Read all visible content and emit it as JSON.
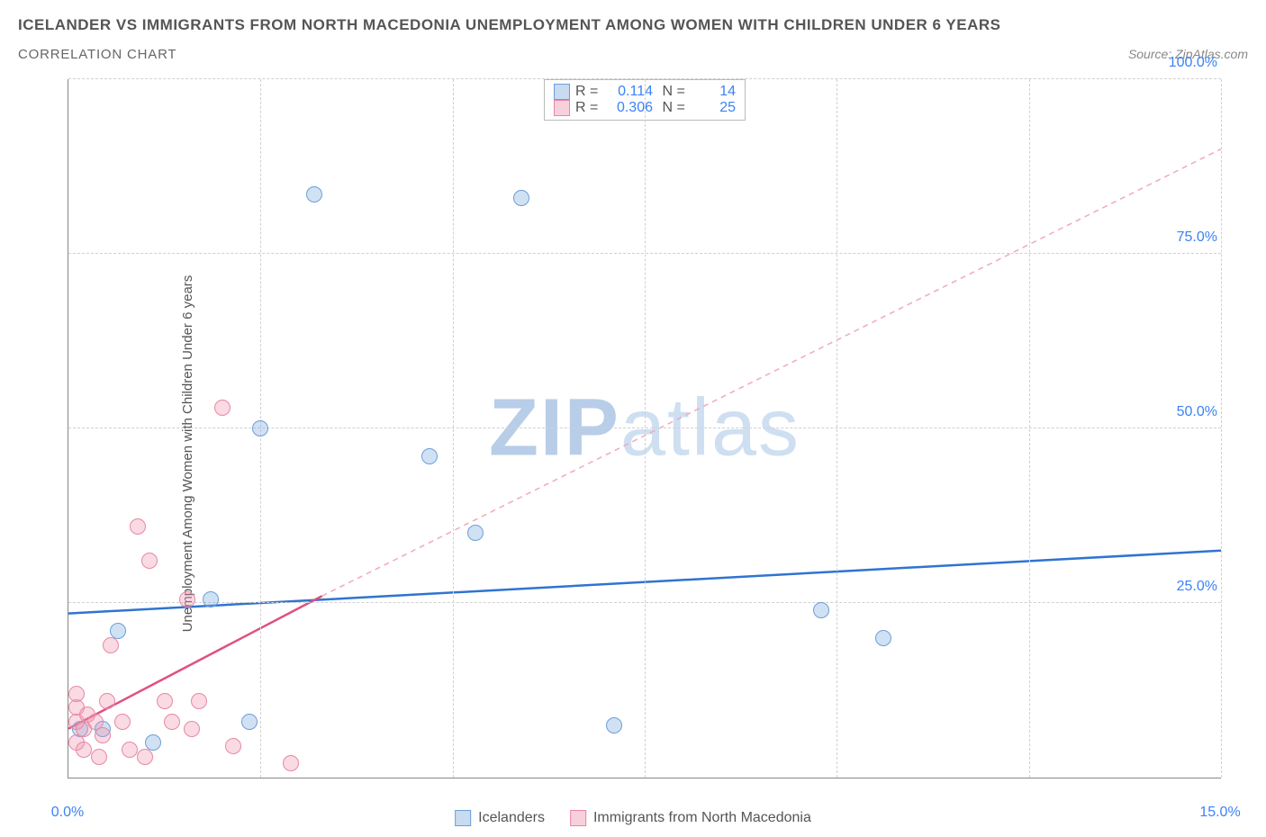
{
  "title": "ICELANDER VS IMMIGRANTS FROM NORTH MACEDONIA UNEMPLOYMENT AMONG WOMEN WITH CHILDREN UNDER 6 YEARS",
  "subtitle": "CORRELATION CHART",
  "source": "Source: ZipAtlas.com",
  "ylabel": "Unemployment Among Women with Children Under 6 years",
  "watermark_a": "ZIP",
  "watermark_b": "atlas",
  "chart": {
    "type": "scatter",
    "xlim": [
      0,
      15
    ],
    "ylim": [
      0,
      100
    ],
    "xticks": [
      {
        "v": 0,
        "l": "0.0%"
      },
      {
        "v": 15,
        "l": "15.0%"
      }
    ],
    "yticks": [
      {
        "v": 25,
        "l": "25.0%"
      },
      {
        "v": 50,
        "l": "50.0%"
      },
      {
        "v": 75,
        "l": "75.0%"
      },
      {
        "v": 100,
        "l": "100.0%"
      }
    ],
    "xgrid": [
      2.5,
      5,
      7.5,
      10,
      12.5,
      15
    ],
    "ygrid": [
      25,
      50,
      75,
      100
    ],
    "background": "#ffffff",
    "grid_color": "#d0d0d0",
    "axis_color": "#888888",
    "tick_color": "#3b82f6",
    "marker_size": 18,
    "series": [
      {
        "name": "Icelanders",
        "color_fill": "rgba(135,175,225,0.38)",
        "color_stroke": "#6a9fd8",
        "R": "0.114",
        "N": "14",
        "trend": {
          "x1": 0,
          "y1": 23.5,
          "x2": 15,
          "y2": 32.5,
          "stroke": "#2f74d0",
          "width": 2.5,
          "dash": "none"
        },
        "points": [
          {
            "x": 0.15,
            "y": 7
          },
          {
            "x": 0.45,
            "y": 7
          },
          {
            "x": 0.65,
            "y": 21
          },
          {
            "x": 1.1,
            "y": 5
          },
          {
            "x": 1.85,
            "y": 25.5
          },
          {
            "x": 2.35,
            "y": 8
          },
          {
            "x": 2.5,
            "y": 50
          },
          {
            "x": 3.2,
            "y": 83.5
          },
          {
            "x": 4.7,
            "y": 46
          },
          {
            "x": 5.3,
            "y": 35
          },
          {
            "x": 5.9,
            "y": 83
          },
          {
            "x": 7.1,
            "y": 7.5
          },
          {
            "x": 9.8,
            "y": 24
          },
          {
            "x": 10.6,
            "y": 20
          }
        ]
      },
      {
        "name": "Immigrants from North Macedonia",
        "color_fill": "rgba(240,150,175,0.35)",
        "color_stroke": "#e688a5",
        "R": "0.306",
        "N": "25",
        "trend_solid": {
          "x1": 0,
          "y1": 7,
          "x2": 3.3,
          "y2": 26,
          "stroke": "#e05080",
          "width": 2.5
        },
        "trend_dash": {
          "x1": 3.3,
          "y1": 26,
          "x2": 15,
          "y2": 90,
          "stroke": "#f2a8bd",
          "width": 1.5,
          "dash": "6,5"
        },
        "points": [
          {
            "x": 0.1,
            "y": 5
          },
          {
            "x": 0.1,
            "y": 8
          },
          {
            "x": 0.1,
            "y": 10
          },
          {
            "x": 0.1,
            "y": 12
          },
          {
            "x": 0.2,
            "y": 4
          },
          {
            "x": 0.2,
            "y": 7
          },
          {
            "x": 0.25,
            "y": 9
          },
          {
            "x": 0.35,
            "y": 8
          },
          {
            "x": 0.4,
            "y": 3
          },
          {
            "x": 0.45,
            "y": 6
          },
          {
            "x": 0.5,
            "y": 11
          },
          {
            "x": 0.55,
            "y": 19
          },
          {
            "x": 0.7,
            "y": 8
          },
          {
            "x": 0.8,
            "y": 4
          },
          {
            "x": 0.9,
            "y": 36
          },
          {
            "x": 1.0,
            "y": 3
          },
          {
            "x": 1.05,
            "y": 31
          },
          {
            "x": 1.25,
            "y": 11
          },
          {
            "x": 1.35,
            "y": 8
          },
          {
            "x": 1.55,
            "y": 25.5
          },
          {
            "x": 1.7,
            "y": 11
          },
          {
            "x": 2.0,
            "y": 53
          },
          {
            "x": 2.15,
            "y": 4.5
          },
          {
            "x": 2.9,
            "y": 2
          },
          {
            "x": 1.6,
            "y": 7
          }
        ]
      }
    ]
  }
}
